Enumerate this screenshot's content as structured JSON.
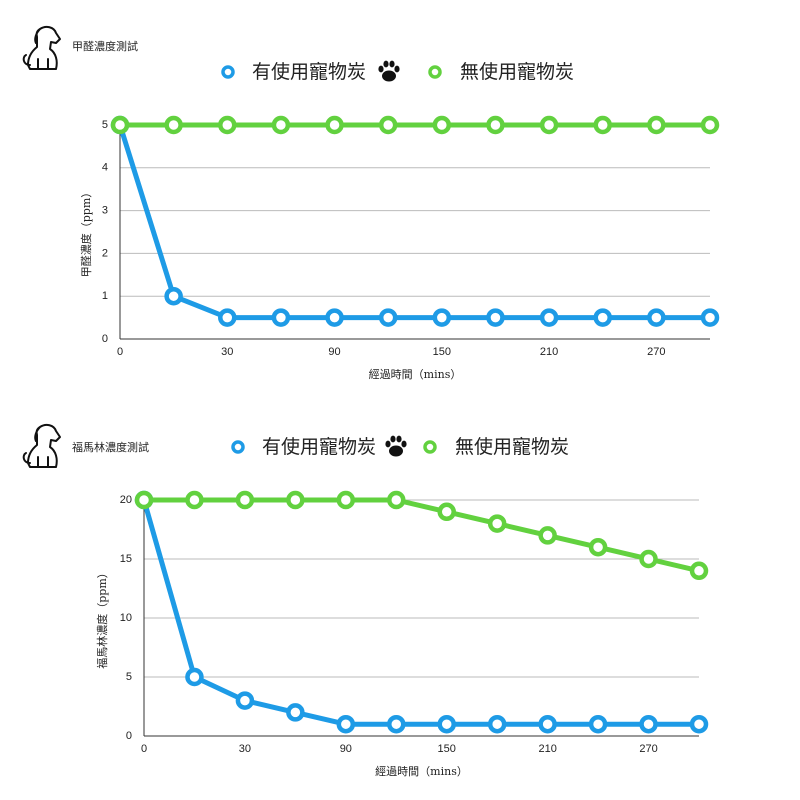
{
  "chart_data": [
    {
      "type": "line",
      "title": "甲醛濃度測試",
      "y_label": "甲醛濃度（ppm）",
      "x_label": "經過時間（mins）",
      "categories": [
        0,
        null,
        30,
        null,
        90,
        null,
        150,
        null,
        210,
        null,
        270,
        null
      ],
      "series": [
        {
          "name": "有使用寵物炭",
          "color": "#1e9be6",
          "values": [
            5,
            1,
            0.5,
            0.5,
            0.5,
            0.5,
            0.5,
            0.5,
            0.5,
            0.5,
            0.5,
            0.5
          ]
        },
        {
          "name": "無使用寵物炭",
          "color": "#62d13f",
          "values": [
            5,
            5,
            5,
            5,
            5,
            5,
            5,
            5,
            5,
            5,
            5,
            5
          ]
        }
      ],
      "ylim": [
        0,
        5
      ],
      "yticks": [
        0,
        1,
        2,
        3,
        4,
        5
      ],
      "grid": true
    },
    {
      "type": "line",
      "title": "福馬林濃度測試",
      "y_label": "福馬林濃度（ppm）",
      "x_label": "經過時間（mins）",
      "categories": [
        0,
        null,
        30,
        null,
        90,
        null,
        150,
        null,
        210,
        null,
        270,
        null
      ],
      "series": [
        {
          "name": "有使用寵物炭",
          "color": "#1e9be6",
          "values": [
            20,
            5,
            3,
            2,
            1,
            1,
            1,
            1,
            1,
            1,
            1,
            1
          ]
        },
        {
          "name": "無使用寵物炭",
          "color": "#62d13f",
          "values": [
            20,
            20,
            20,
            20,
            20,
            20,
            19,
            18,
            17,
            16,
            15,
            14
          ]
        }
      ],
      "ylim": [
        0,
        20
      ],
      "yticks": [
        0,
        5,
        10,
        15,
        20
      ],
      "grid": true
    }
  ]
}
